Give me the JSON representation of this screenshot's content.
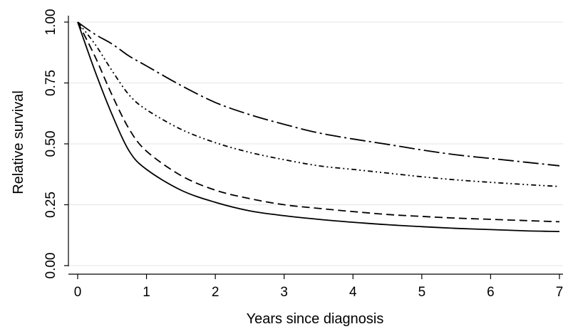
{
  "chart_data": {
    "type": "line",
    "title": "",
    "xlabel": "Years since diagnosis",
    "ylabel": "Relative survival",
    "xlim": [
      0,
      7
    ],
    "ylim": [
      0,
      1
    ],
    "xticks": [
      0,
      1,
      2,
      3,
      4,
      5,
      6,
      7
    ],
    "xtick_labels": [
      "0",
      "1",
      "2",
      "3",
      "4",
      "5",
      "6",
      "7"
    ],
    "yticks": [
      0,
      0.25,
      0.5,
      0.75,
      1
    ],
    "ytick_labels": [
      "0.00",
      "0.25",
      "0.50",
      "0.75",
      "1.00"
    ],
    "grid": "horizontal",
    "x": [
      0,
      0.25,
      0.5,
      0.75,
      1,
      1.5,
      2,
      2.5,
      3,
      3.5,
      4,
      4.5,
      5,
      5.5,
      6,
      6.5,
      7
    ],
    "series": [
      {
        "style": "solid",
        "values": [
          1.0,
          0.8,
          0.62,
          0.47,
          0.395,
          0.31,
          0.26,
          0.225,
          0.205,
          0.19,
          0.178,
          0.168,
          0.16,
          0.153,
          0.148,
          0.143,
          0.14
        ]
      },
      {
        "style": "dash",
        "values": [
          1.0,
          0.86,
          0.7,
          0.56,
          0.47,
          0.37,
          0.31,
          0.275,
          0.25,
          0.235,
          0.222,
          0.21,
          0.202,
          0.195,
          0.19,
          0.185,
          0.18
        ]
      },
      {
        "style": "dash-dot-dot",
        "values": [
          1.0,
          0.91,
          0.8,
          0.7,
          0.64,
          0.56,
          0.505,
          0.465,
          0.435,
          0.41,
          0.395,
          0.38,
          0.365,
          0.352,
          0.342,
          0.333,
          0.325
        ]
      },
      {
        "style": "long-dash-dot",
        "values": [
          1.0,
          0.95,
          0.91,
          0.86,
          0.82,
          0.74,
          0.67,
          0.62,
          0.58,
          0.545,
          0.52,
          0.498,
          0.475,
          0.455,
          0.44,
          0.425,
          0.41
        ]
      }
    ]
  }
}
